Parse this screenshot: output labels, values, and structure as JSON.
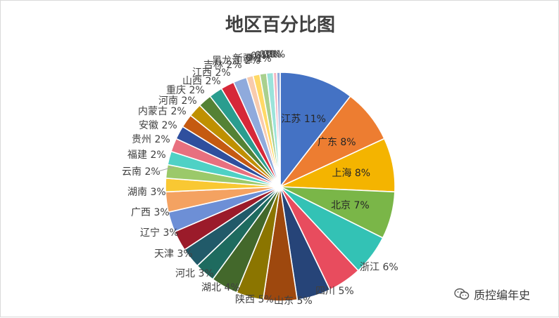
{
  "chart_data": {
    "type": "pie",
    "title": "地区百分比图",
    "slices": [
      {
        "name": "江苏",
        "label": "江苏 11%",
        "value": 11,
        "color": "#4472C4"
      },
      {
        "name": "广东",
        "label": "广东 8%",
        "value": 8,
        "color": "#ED7D31"
      },
      {
        "name": "上海",
        "label": "上海 8%",
        "value": 8,
        "color": "#F4B400"
      },
      {
        "name": "北京",
        "label": "北京 7%",
        "value": 7,
        "color": "#7AB648"
      },
      {
        "name": "浙江",
        "label": "浙江 6%",
        "value": 6,
        "color": "#33C2B5"
      },
      {
        "name": "四川",
        "label": "四川 5%",
        "value": 5,
        "color": "#E84C5E"
      },
      {
        "name": "山东",
        "label": "山东 5%",
        "value": 5,
        "color": "#264478"
      },
      {
        "name": "陕西",
        "label": "陕西 5%",
        "value": 5,
        "color": "#9E480E"
      },
      {
        "name": "",
        "label": "",
        "value": 4,
        "color": "#8B7500"
      },
      {
        "name": "湖北",
        "label": "湖北 4%",
        "value": 4,
        "color": "#43682B"
      },
      {
        "name": "河北",
        "label": "河北 3%",
        "value": 3,
        "color": "#1E6B5F"
      },
      {
        "name": "天津",
        "label": "天津 3%",
        "value": 3,
        "color": "#215A69"
      },
      {
        "name": "辽宁",
        "label": "辽宁 3%",
        "value": 3,
        "color": "#9B1B2A"
      },
      {
        "name": "广西",
        "label": "广西 3%",
        "value": 3,
        "color": "#6D8FD6"
      },
      {
        "name": "湖南",
        "label": "湖南 3%",
        "value": 3,
        "color": "#F4A261"
      },
      {
        "name": "云南",
        "label": "云南 2%",
        "value": 2,
        "color": "#F9C833"
      },
      {
        "name": "福建",
        "label": "福建 2%",
        "value": 2,
        "color": "#9BC96A"
      },
      {
        "name": "贵州",
        "label": "贵州 2%",
        "value": 2,
        "color": "#4FD1C5"
      },
      {
        "name": "安徽",
        "label": "安徽 2%",
        "value": 2,
        "color": "#E8707F"
      },
      {
        "name": "内蒙古",
        "label": "内蒙古 2%",
        "value": 2,
        "color": "#2F4F9E"
      },
      {
        "name": "河南",
        "label": "河南 2%",
        "value": 2,
        "color": "#C55A11"
      },
      {
        "name": "重庆",
        "label": "重庆 2%",
        "value": 2,
        "color": "#BF9000"
      },
      {
        "name": "山西",
        "label": "山西 2%",
        "value": 2,
        "color": "#548235"
      },
      {
        "name": "江西",
        "label": "江西 2%",
        "value": 2,
        "color": "#2A9D8F"
      },
      {
        "name": "吉林",
        "label": "吉林 2%",
        "value": 2,
        "color": "#D62839"
      },
      {
        "name": "黑龙江",
        "label": "黑龙江 2%",
        "value": 2,
        "color": "#8FAADC"
      },
      {
        "name": "新疆",
        "label": "新疆 1%",
        "value": 1,
        "color": "#F8CBAD"
      },
      {
        "name": "",
        "label": "",
        "value": 1,
        "color": "#FFD966"
      },
      {
        "name": "",
        "label": "",
        "value": 1,
        "color": "#A9D08E"
      },
      {
        "name": "",
        "label": "",
        "value": 1,
        "color": "#9BE3DA"
      },
      {
        "name": "",
        "label": "",
        "value": 0.5,
        "color": "#F4B6C2"
      },
      {
        "name": "",
        "label": "",
        "value": 0.5,
        "color": "#8EA9DB"
      }
    ],
    "cluster_label": "0%",
    "legend": "none"
  },
  "watermark": {
    "text": "质控编年史",
    "color": "#3a3a3a"
  }
}
